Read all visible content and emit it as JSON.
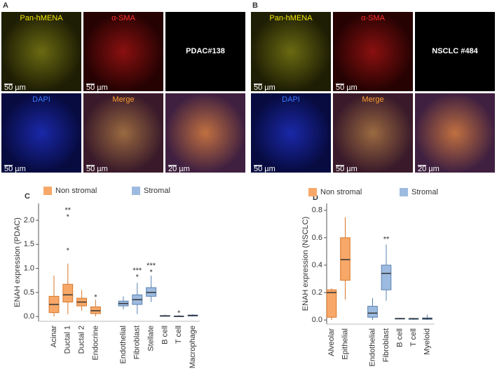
{
  "panels": [
    {
      "label": "A",
      "tiles": [
        {
          "label": "Pan-hMENA",
          "scale": "50 µm"
        },
        {
          "label": "α-SMA",
          "scale": "50 µm"
        },
        {
          "label": "PDAC#138"
        },
        {
          "label": "DAPI",
          "scale": "50 µm"
        },
        {
          "label": "Merge",
          "scale": "50 µm"
        },
        {
          "scale": "20 µm"
        }
      ]
    },
    {
      "label": "B",
      "tiles": [
        {
          "label": "Pan-hMENA",
          "scale": "50 µm"
        },
        {
          "label": "α-SMA",
          "scale": "50 µm"
        },
        {
          "label": "NSCLC #484"
        },
        {
          "label": "DAPI",
          "scale": "50 µm"
        },
        {
          "label": "Merge",
          "scale": "50 µm"
        },
        {
          "scale": "20 µm"
        }
      ]
    }
  ],
  "chart_data": [
    {
      "type": "box",
      "panel_label": "C",
      "ylabel": "ENAH expression (PDAC)",
      "categories": [
        "Acinar",
        "Ductal 1",
        "Ductal 2",
        "Endocrine",
        null,
        "Endothelial",
        "Fibroblast",
        "Stellate",
        "B cell",
        "T cell",
        "Macrophage"
      ],
      "series": [
        {
          "name": "Non stromal",
          "color": "#f7a868",
          "values": [
            [
              0,
              0.08,
              0.25,
              0.42,
              0.85
            ],
            [
              0.05,
              0.3,
              0.45,
              0.67,
              1.1
            ],
            [
              0.12,
              0.22,
              0.3,
              0.38,
              0.55
            ],
            [
              0,
              0.06,
              0.12,
              0.2,
              0.35
            ],
            null,
            null,
            null,
            null,
            null,
            null,
            null
          ],
          "outliers": [
            [],
            [
              1.4,
              2.1
            ],
            [],
            [
              0.43
            ],
            null,
            null,
            null,
            null,
            null,
            null,
            null
          ]
        },
        {
          "name": "Stromal",
          "color": "#9dbbe0",
          "values": [
            null,
            null,
            null,
            null,
            null,
            [
              0.15,
              0.22,
              0.27,
              0.32,
              0.42
            ],
            [
              0.05,
              0.25,
              0.35,
              0.45,
              0.7
            ],
            [
              0.3,
              0.42,
              0.5,
              0.6,
              0.85
            ],
            [
              0,
              0.005,
              0.01,
              0.02,
              0.04
            ],
            [
              0,
              0.002,
              0.005,
              0.01,
              0.03
            ],
            [
              0,
              0.01,
              0.02,
              0.03,
              0.05
            ]
          ],
          "outliers": [
            null,
            null,
            null,
            null,
            null,
            [],
            [
              0.85
            ],
            [
              0.95
            ],
            [],
            [
              0.1
            ],
            []
          ]
        }
      ],
      "significance": [
        null,
        "**",
        null,
        null,
        null,
        null,
        "***",
        "***",
        null,
        null,
        null
      ],
      "ylim": [
        -0.1,
        2.35
      ],
      "yticks": [
        {
          "value": 0,
          "label": "0.0"
        },
        {
          "value": 0.5,
          "label": "0.5"
        },
        {
          "value": 1,
          "label": "1.0"
        },
        {
          "value": 1.5,
          "label": "1.5"
        },
        {
          "value": 2,
          "label": "2.0"
        }
      ]
    },
    {
      "type": "box",
      "panel_label": "D",
      "ylabel": "ENAH expression (NSCLC)",
      "categories": [
        "Alveolar",
        "Epithelial",
        null,
        "Endothelial",
        "Fibroblast",
        "B cell",
        "T cell",
        "Myeloid"
      ],
      "series": [
        {
          "name": "Non stromal",
          "color": "#f7a868",
          "values": [
            [
              0,
              0.02,
              0.2,
              0.22,
              0.23
            ],
            [
              0.15,
              0.29,
              0.44,
              0.6,
              0.75
            ],
            null,
            null,
            null,
            null,
            null,
            null
          ],
          "outliers": [
            [],
            [],
            null,
            null,
            null,
            null,
            null,
            null
          ]
        },
        {
          "name": "Stromal",
          "color": "#9dbbe0",
          "values": [
            null,
            null,
            null,
            [
              0,
              0.02,
              0.05,
              0.1,
              0.16
            ],
            [
              0.14,
              0.22,
              0.34,
              0.4,
              0.55
            ],
            [
              0.005,
              0.01,
              0.01,
              0.012,
              0.015
            ],
            [
              0,
              0.005,
              0.01,
              0.01,
              0.015
            ],
            [
              0,
              0.005,
              0.01,
              0.015,
              0.04
            ]
          ],
          "outliers": [
            null,
            null,
            null,
            [],
            [],
            [],
            [],
            []
          ]
        }
      ],
      "significance": [
        null,
        null,
        null,
        null,
        "**",
        null,
        null,
        null
      ],
      "ylim": [
        -0.03,
        0.85
      ],
      "yticks": [
        {
          "value": 0,
          "label": "0.0"
        },
        {
          "value": 0.2,
          "label": "0.2"
        },
        {
          "value": 0.4,
          "label": "0.4"
        },
        {
          "value": 0.6,
          "label": "0.6"
        },
        {
          "value": 0.8,
          "label": "0.8"
        }
      ]
    }
  ]
}
